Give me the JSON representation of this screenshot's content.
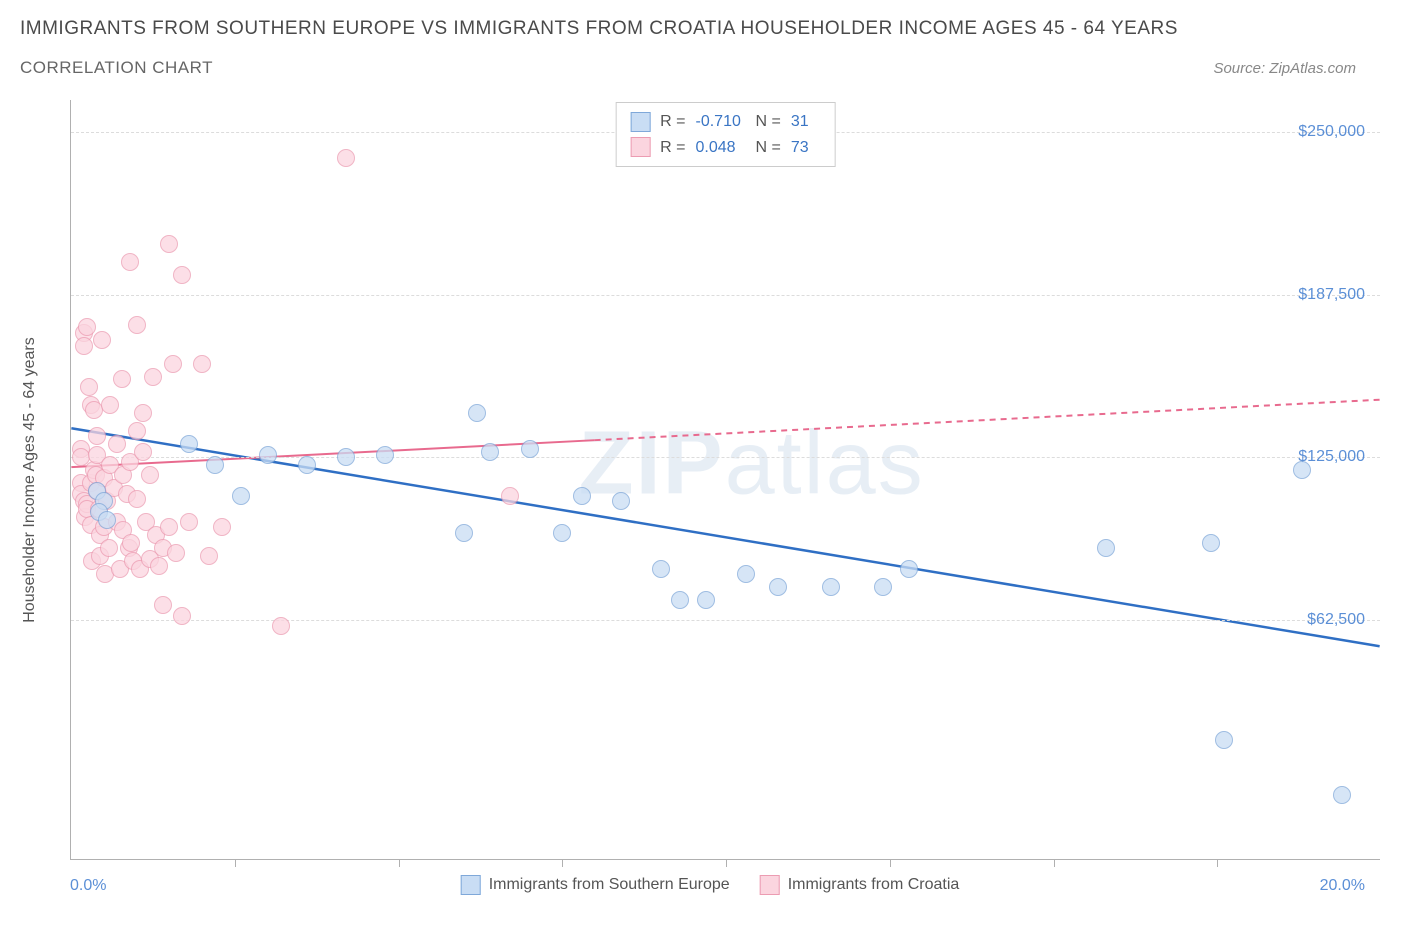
{
  "title": "IMMIGRANTS FROM SOUTHERN EUROPE VS IMMIGRANTS FROM CROATIA HOUSEHOLDER INCOME AGES 45 - 64 YEARS",
  "subtitle": "CORRELATION CHART",
  "source": "Source: ZipAtlas.com",
  "watermark_bold": "ZIP",
  "watermark_light": "atlas",
  "y_axis_title": "Householder Income Ages 45 - 64 years",
  "x_min": 0.0,
  "x_max": 20.0,
  "x_label_min": "0.0%",
  "x_label_max": "20.0%",
  "y_min": -30000,
  "y_max": 262500,
  "y_ticks": [
    62500,
    125000,
    187500,
    250000
  ],
  "y_tick_labels": [
    "$62,500",
    "$125,000",
    "$187,500",
    "$250,000"
  ],
  "x_ticks": [
    2.5,
    5.0,
    7.5,
    10.0,
    12.5,
    15.0,
    17.5
  ],
  "grid_color": "#dcdcdc",
  "axis_color": "#b0b0b0",
  "tick_label_color": "#5b8fd6",
  "background_color": "#ffffff",
  "point_radius": 9,
  "series": [
    {
      "name": "Immigrants from Southern Europe",
      "fill": "#c9ddf4",
      "stroke": "#7fa8d9",
      "trend_color": "#2f6fc4",
      "trend_width": 2.5,
      "r_label": "R =",
      "r_value": "-0.710",
      "n_label": "N =",
      "n_value": "31",
      "trend": {
        "x1": 0.0,
        "y1": 136000,
        "x2": 20.0,
        "y2": 52000
      },
      "points": [
        [
          0.4,
          112000
        ],
        [
          0.5,
          108000
        ],
        [
          0.42,
          104000
        ],
        [
          0.55,
          101000
        ],
        [
          1.8,
          130000
        ],
        [
          2.2,
          122000
        ],
        [
          2.6,
          110000
        ],
        [
          3.0,
          126000
        ],
        [
          3.6,
          122000
        ],
        [
          4.2,
          125000
        ],
        [
          4.8,
          126000
        ],
        [
          6.0,
          96000
        ],
        [
          6.2,
          142000
        ],
        [
          6.4,
          127000
        ],
        [
          7.0,
          128000
        ],
        [
          7.5,
          96000
        ],
        [
          7.8,
          110000
        ],
        [
          8.4,
          108000
        ],
        [
          9.0,
          82000
        ],
        [
          9.3,
          70000
        ],
        [
          9.7,
          70000
        ],
        [
          10.3,
          80000
        ],
        [
          10.8,
          75000
        ],
        [
          11.6,
          75000
        ],
        [
          12.4,
          75000
        ],
        [
          12.8,
          82000
        ],
        [
          15.8,
          90000
        ],
        [
          17.4,
          92000
        ],
        [
          17.6,
          16000
        ],
        [
          18.8,
          120000
        ],
        [
          19.4,
          -5000
        ]
      ]
    },
    {
      "name": "Immigrants from Croatia",
      "fill": "#fbd5df",
      "stroke": "#ec9cb2",
      "trend_color": "#e86a8e",
      "trend_width": 2,
      "r_label": "R =",
      "r_value": "0.048",
      "n_label": "N =",
      "n_value": "73",
      "trend": {
        "x1": 0.0,
        "y1": 121000,
        "x2": 20.0,
        "y2": 147000
      },
      "trend_dash_after_x": 8.0,
      "points": [
        [
          0.15,
          128000
        ],
        [
          0.15,
          115000
        ],
        [
          0.15,
          111000
        ],
        [
          0.15,
          125000
        ],
        [
          0.2,
          173000
        ],
        [
          0.2,
          168000
        ],
        [
          0.2,
          108000
        ],
        [
          0.22,
          102000
        ],
        [
          0.25,
          175000
        ],
        [
          0.25,
          107000
        ],
        [
          0.25,
          105000
        ],
        [
          0.28,
          152000
        ],
        [
          0.3,
          145000
        ],
        [
          0.3,
          115000
        ],
        [
          0.3,
          99000
        ],
        [
          0.32,
          85000
        ],
        [
          0.35,
          143000
        ],
        [
          0.35,
          120000
        ],
        [
          0.38,
          118000
        ],
        [
          0.4,
          133000
        ],
        [
          0.4,
          126000
        ],
        [
          0.4,
          112000
        ],
        [
          0.42,
          105000
        ],
        [
          0.45,
          95000
        ],
        [
          0.45,
          87000
        ],
        [
          0.48,
          170000
        ],
        [
          0.5,
          117000
        ],
        [
          0.5,
          98000
        ],
        [
          0.52,
          80000
        ],
        [
          0.55,
          108000
        ],
        [
          0.58,
          90000
        ],
        [
          0.6,
          122000
        ],
        [
          0.6,
          145000
        ],
        [
          0.65,
          113000
        ],
        [
          0.7,
          100000
        ],
        [
          0.7,
          130000
        ],
        [
          0.75,
          82000
        ],
        [
          0.78,
          155000
        ],
        [
          0.8,
          118000
        ],
        [
          0.8,
          97000
        ],
        [
          0.85,
          111000
        ],
        [
          0.88,
          90000
        ],
        [
          0.9,
          200000
        ],
        [
          0.9,
          123000
        ],
        [
          0.92,
          92000
        ],
        [
          0.95,
          85000
        ],
        [
          1.0,
          176000
        ],
        [
          1.0,
          135000
        ],
        [
          1.0,
          109000
        ],
        [
          1.05,
          82000
        ],
        [
          1.1,
          127000
        ],
        [
          1.1,
          142000
        ],
        [
          1.15,
          100000
        ],
        [
          1.2,
          118000
        ],
        [
          1.2,
          86000
        ],
        [
          1.25,
          156000
        ],
        [
          1.3,
          95000
        ],
        [
          1.35,
          83000
        ],
        [
          1.4,
          90000
        ],
        [
          1.4,
          68000
        ],
        [
          1.5,
          207000
        ],
        [
          1.5,
          98000
        ],
        [
          1.55,
          161000
        ],
        [
          1.6,
          88000
        ],
        [
          1.7,
          195000
        ],
        [
          1.7,
          64000
        ],
        [
          1.8,
          100000
        ],
        [
          2.0,
          161000
        ],
        [
          2.1,
          87000
        ],
        [
          2.3,
          98000
        ],
        [
          3.2,
          60000
        ],
        [
          4.2,
          240000
        ],
        [
          6.7,
          110000
        ]
      ]
    }
  ]
}
